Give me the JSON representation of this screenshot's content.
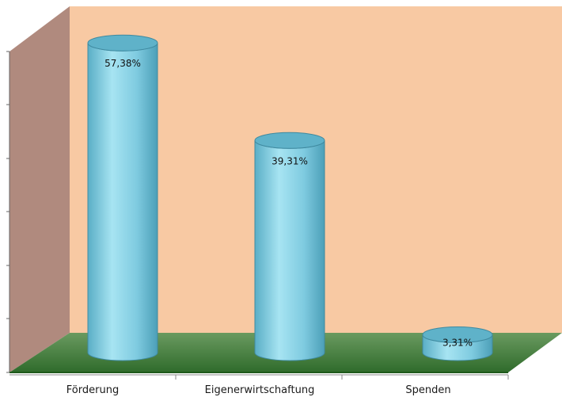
{
  "chart_data": {
    "type": "bar",
    "style": "3d-cylinder",
    "categories": [
      "Förderung",
      "Eigenerwirtschaftung",
      "Spenden"
    ],
    "values": [
      57.38,
      39.31,
      3.31
    ],
    "value_labels": [
      "57,38%",
      "39,31%",
      "3,31%"
    ],
    "title": "",
    "xlabel": "",
    "ylabel": "",
    "ylim": [
      0,
      60
    ],
    "grid": false,
    "legend": "none"
  },
  "colors": {
    "bar": "#8fd6e8",
    "bar_dark": "#4fa8c0",
    "back_wall": "#f8c9a3",
    "side_wall": "#b08a7e",
    "floor_top": "#4e8a4a",
    "floor_front": "#226a1e"
  }
}
